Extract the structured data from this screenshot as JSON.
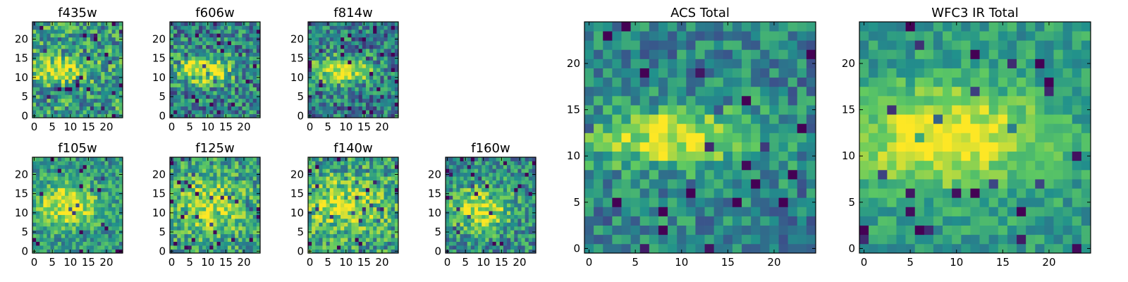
{
  "figure": {
    "colormap": "viridis",
    "colormap_stops": [
      "#440154",
      "#3b528b",
      "#21918c",
      "#5ec962",
      "#fde725"
    ]
  },
  "chart_data": [
    {
      "type": "heatmap",
      "title": "f435w",
      "size": 25,
      "xticks": [
        0,
        5,
        10,
        15,
        20
      ],
      "yticks": [
        0,
        5,
        10,
        15,
        20
      ],
      "xlim": [
        0,
        24
      ],
      "ylim": [
        0,
        24
      ],
      "grid": false,
      "source": {
        "cx": 7,
        "cy": 12,
        "rx": 6,
        "ry": 2.2,
        "amp": 0.45,
        "noise": 0.3,
        "base": 0.55,
        "seed": 11
      }
    },
    {
      "type": "heatmap",
      "title": "f606w",
      "size": 25,
      "xticks": [
        0,
        5,
        10,
        15,
        20
      ],
      "yticks": [
        0,
        5,
        10,
        15,
        20
      ],
      "xlim": [
        0,
        24
      ],
      "ylim": [
        0,
        24
      ],
      "grid": false,
      "source": {
        "cx": 9,
        "cy": 12,
        "rx": 6,
        "ry": 2.4,
        "amp": 0.55,
        "noise": 0.3,
        "base": 0.45,
        "seed": 23
      }
    },
    {
      "type": "heatmap",
      "title": "f814w",
      "size": 25,
      "xticks": [
        0,
        5,
        10,
        15,
        20
      ],
      "yticks": [
        0,
        5,
        10,
        15,
        20
      ],
      "xlim": [
        0,
        24
      ],
      "ylim": [
        0,
        24
      ],
      "grid": false,
      "source": {
        "cx": 9,
        "cy": 12,
        "rx": 6,
        "ry": 2.4,
        "amp": 0.6,
        "noise": 0.28,
        "base": 0.42,
        "seed": 37
      }
    },
    {
      "type": "heatmap",
      "title": "f105w",
      "size": 25,
      "xticks": [
        0,
        5,
        10,
        15,
        20
      ],
      "yticks": [
        0,
        5,
        10,
        15,
        20
      ],
      "xlim": [
        0,
        24
      ],
      "ylim": [
        0,
        24
      ],
      "grid": false,
      "source": {
        "cx": 9,
        "cy": 12,
        "rx": 6,
        "ry": 4,
        "amp": 0.45,
        "noise": 0.22,
        "base": 0.52,
        "seed": 41
      }
    },
    {
      "type": "heatmap",
      "title": "f125w",
      "size": 25,
      "xticks": [
        0,
        5,
        10,
        15,
        20
      ],
      "yticks": [
        0,
        5,
        10,
        15,
        20
      ],
      "xlim": [
        0,
        24
      ],
      "ylim": [
        0,
        24
      ],
      "grid": false,
      "source": {
        "cx": 11,
        "cy": 12,
        "rx": 7,
        "ry": 5,
        "amp": 0.35,
        "noise": 0.26,
        "base": 0.55,
        "seed": 53
      }
    },
    {
      "type": "heatmap",
      "title": "f140w",
      "size": 25,
      "xticks": [
        0,
        5,
        10,
        15,
        20
      ],
      "yticks": [
        0,
        5,
        10,
        15,
        20
      ],
      "xlim": [
        0,
        24
      ],
      "ylim": [
        0,
        24
      ],
      "grid": false,
      "source": {
        "cx": 10,
        "cy": 12,
        "rx": 8,
        "ry": 5,
        "amp": 0.35,
        "noise": 0.28,
        "base": 0.55,
        "seed": 67
      }
    },
    {
      "type": "heatmap",
      "title": "f160w",
      "size": 25,
      "xticks": [
        0,
        5,
        10,
        15,
        20
      ],
      "yticks": [
        0,
        5,
        10,
        15,
        20
      ],
      "xlim": [
        0,
        24
      ],
      "ylim": [
        0,
        24
      ],
      "grid": false,
      "source": {
        "cx": 9,
        "cy": 11,
        "rx": 6,
        "ry": 4,
        "amp": 0.45,
        "noise": 0.26,
        "base": 0.48,
        "seed": 79
      }
    },
    {
      "type": "heatmap",
      "title": "ACS Total",
      "size": 25,
      "xticks": [
        0,
        5,
        10,
        15,
        20
      ],
      "yticks": [
        0,
        5,
        10,
        15,
        20
      ],
      "xlim": [
        0,
        24
      ],
      "ylim": [
        0,
        24
      ],
      "grid": false,
      "source": {
        "cx": 9,
        "cy": 12,
        "rx": 6,
        "ry": 2.3,
        "amp": 0.55,
        "noise": 0.22,
        "base": 0.45,
        "seed": 97
      }
    },
    {
      "type": "heatmap",
      "title": "WFC3 IR Total",
      "size": 25,
      "xticks": [
        0,
        5,
        10,
        15,
        20
      ],
      "yticks": [
        0,
        5,
        10,
        15,
        20
      ],
      "xlim": [
        0,
        24
      ],
      "ylim": [
        0,
        24
      ],
      "grid": false,
      "source": {
        "cx": 9,
        "cy": 12,
        "rx": 7,
        "ry": 3.6,
        "amp": 0.5,
        "noise": 0.15,
        "base": 0.55,
        "seed": 131
      }
    }
  ]
}
